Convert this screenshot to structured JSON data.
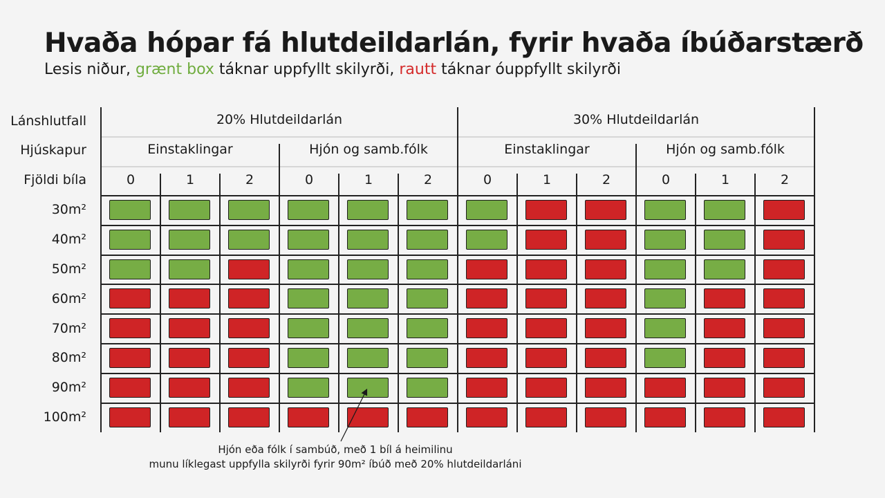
{
  "title": "Hvaða hópar fá hlutdeildarlán, fyrir hvaða íbúðarstærð",
  "subtitle": {
    "prefix": "Lesis niður, ",
    "green_label": "grænt box",
    "middle": " táknar uppfyllt skilyrði, ",
    "red_label": "rautt",
    "suffix": " táknar óuppfyllt skilyrði"
  },
  "colors": {
    "green": "#77ad45",
    "red": "#cf2426",
    "green_text": "#6fac3e",
    "red_text": "#d42a2a"
  },
  "row_headers": {
    "loan_share": "Lánshlutfall",
    "marital": "Hjúskapur",
    "cars": "Fjöldi bíla"
  },
  "annotation": {
    "line1": "Hjón eða fólk í sambúð, með 1 bíl á heimilinu",
    "line2": "munu líklegast uppfylla skilyrði fyrir 90m² íbúð með 20% hlutdeildarláni"
  },
  "chart_data": {
    "type": "table",
    "loan_groups": [
      "20% Hlutdeildarlán",
      "30% Hlutdeildarlán"
    ],
    "marital_groups": [
      "Einstaklingar",
      "Hjón og samb.fólk",
      "Einstaklingar",
      "Hjón og samb.fólk"
    ],
    "car_counts": [
      "0",
      "1",
      "2",
      "0",
      "1",
      "2",
      "0",
      "1",
      "2",
      "0",
      "1",
      "2"
    ],
    "sizes": [
      "30m²",
      "40m²",
      "50m²",
      "60m²",
      "70m²",
      "80m²",
      "90m²",
      "100m²"
    ],
    "legend": {
      "G": "uppfyllt skilyrði",
      "R": "óuppfyllt skilyrði"
    },
    "grid": [
      [
        "G",
        "G",
        "G",
        "G",
        "G",
        "G",
        "G",
        "R",
        "R",
        "G",
        "G",
        "R"
      ],
      [
        "G",
        "G",
        "G",
        "G",
        "G",
        "G",
        "G",
        "R",
        "R",
        "G",
        "G",
        "R"
      ],
      [
        "G",
        "G",
        "R",
        "G",
        "G",
        "G",
        "R",
        "R",
        "R",
        "G",
        "G",
        "R"
      ],
      [
        "R",
        "R",
        "R",
        "G",
        "G",
        "G",
        "R",
        "R",
        "R",
        "G",
        "R",
        "R"
      ],
      [
        "R",
        "R",
        "R",
        "G",
        "G",
        "G",
        "R",
        "R",
        "R",
        "G",
        "R",
        "R"
      ],
      [
        "R",
        "R",
        "R",
        "G",
        "G",
        "G",
        "R",
        "R",
        "R",
        "G",
        "R",
        "R"
      ],
      [
        "R",
        "R",
        "R",
        "G",
        "G",
        "G",
        "R",
        "R",
        "R",
        "R",
        "R",
        "R"
      ],
      [
        "R",
        "R",
        "R",
        "R",
        "R",
        "R",
        "R",
        "R",
        "R",
        "R",
        "R",
        "R"
      ]
    ]
  }
}
